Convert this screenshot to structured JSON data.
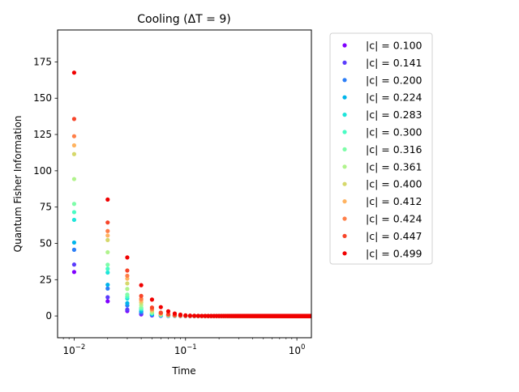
{
  "chart_data": {
    "type": "scatter",
    "title": "Cooling (ΔT = 9)",
    "xlabel": "Time",
    "ylabel": "Quantum Fisher Information",
    "x_scale": "log",
    "xlim": [
      0.0071,
      1.35
    ],
    "ylim": [
      -15,
      197
    ],
    "x_ticks": [
      {
        "value": 0.01,
        "base": "10",
        "exp": "−2"
      },
      {
        "value": 0.1,
        "base": "10",
        "exp": "−1"
      },
      {
        "value": 1,
        "base": "10",
        "exp": "0"
      }
    ],
    "y_ticks": [
      0,
      25,
      50,
      75,
      100,
      125,
      150,
      175
    ],
    "y_tick_labels": [
      "0",
      "25",
      "50",
      "75",
      "100",
      "125",
      "150",
      "175"
    ],
    "legend_position": "outside-right",
    "grid": false,
    "x_start": 0.01,
    "x_step": 0.01,
    "x_end": 1.35,
    "series": [
      {
        "name": "|c| = 0.100",
        "color": "#8000ff",
        "head": [
          30.3,
          10.1,
          3.4,
          1.1,
          0.4,
          0.12
        ]
      },
      {
        "name": "|c| = 0.141",
        "color": "#5a3cfc",
        "head": [
          35.4,
          12.9,
          4.4,
          1.5,
          0.5,
          0.17
        ]
      },
      {
        "name": "|c| = 0.200",
        "color": "#2c7ef7",
        "head": [
          45.6,
          18.9,
          7.2,
          2.6,
          0.9,
          0.3
        ]
      },
      {
        "name": "|c| = 0.224",
        "color": "#00b5eb",
        "head": [
          50.6,
          21.5,
          8.8,
          3.3,
          1.2,
          0.4
        ]
      },
      {
        "name": "|c| = 0.283",
        "color": "#1ee5da",
        "head": [
          66.2,
          29.9,
          12.0,
          4.6,
          1.7,
          0.6
        ]
      },
      {
        "name": "|c| = 0.300",
        "color": "#4afcc4",
        "head": [
          71.5,
          32.5,
          13.3,
          5.2,
          1.9,
          0.7
        ]
      },
      {
        "name": "|c| = 0.316",
        "color": "#7efda9",
        "head": [
          77.2,
          35.3,
          14.7,
          5.8,
          2.2,
          0.8
        ]
      },
      {
        "name": "|c| = 0.361",
        "color": "#b0f38c",
        "head": [
          94.3,
          43.9,
          18.6,
          7.5,
          2.9,
          1.1
        ]
      },
      {
        "name": "|c| = 0.400",
        "color": "#d6d86b",
        "head": [
          111.5,
          52.3,
          22.4,
          9.2,
          3.7,
          1.4
        ]
      },
      {
        "name": "|c| = 0.412",
        "color": "#ffb360",
        "head": [
          117.5,
          55.4,
          25.7,
          10.6,
          4.3,
          1.7
        ]
      },
      {
        "name": "|c| = 0.424",
        "color": "#ff7f48",
        "head": [
          123.8,
          58.5,
          27.7,
          11.7,
          4.8,
          1.9
        ]
      },
      {
        "name": "|c| = 0.447",
        "color": "#f7452a",
        "head": [
          135.7,
          64.4,
          31.3,
          13.8,
          5.8,
          2.3
        ]
      },
      {
        "name": "|c| = 0.499",
        "color": "#f00000",
        "head": [
          167.6,
          80.2,
          40.3,
          21.2,
          11.3,
          6.1,
          3.2,
          1.7,
          0.9,
          0.45
        ]
      }
    ]
  }
}
